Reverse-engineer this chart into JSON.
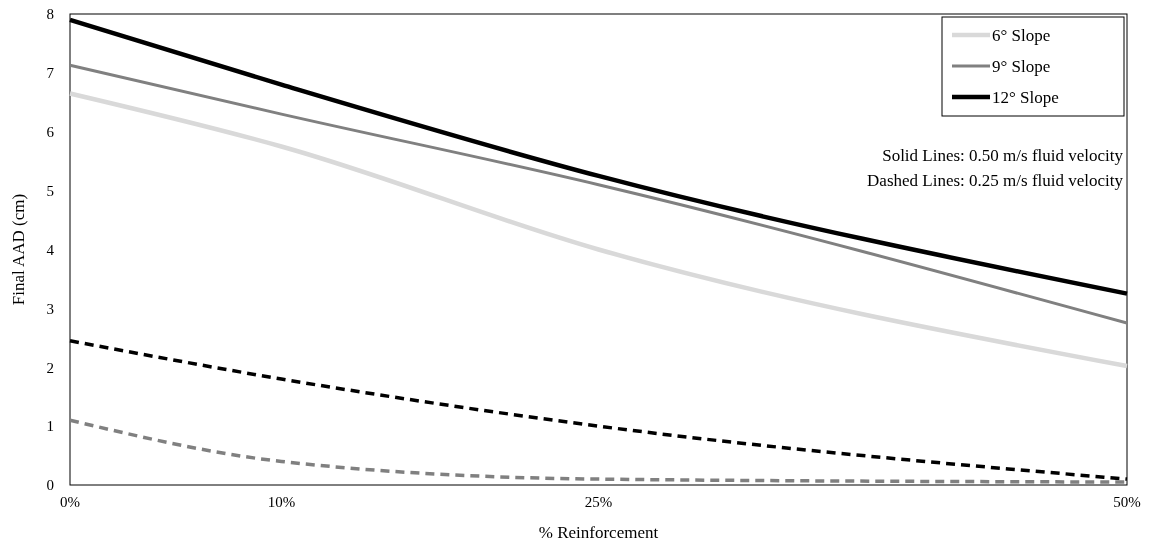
{
  "chart_data": {
    "type": "line",
    "xlabel": "% Reinforcement",
    "ylabel": "Final AAD (cm)",
    "x": [
      0,
      10,
      25,
      50
    ],
    "xlim": [
      0,
      50
    ],
    "xticks": [
      {
        "value": 0,
        "label": "0%"
      },
      {
        "value": 10,
        "label": "10%"
      },
      {
        "value": 25,
        "label": "25%"
      },
      {
        "value": 50,
        "label": "50%"
      }
    ],
    "ylim": [
      0,
      8
    ],
    "yticks": [
      0,
      1,
      2,
      3,
      4,
      5,
      6,
      7,
      8
    ],
    "grid": false,
    "legend": "top right",
    "marker": "none",
    "series": [
      {
        "name": "6° Slope",
        "color": "#d9d9d9",
        "values": [
          6.65,
          5.75,
          4.0,
          2.02
        ],
        "line_style": "solid"
      },
      {
        "name": "9° Slope",
        "color": "#808080",
        "values": [
          7.13,
          6.3,
          5.1,
          2.75
        ],
        "line_style": "solid"
      },
      {
        "name": "12° Slope",
        "color": "#000000",
        "values": [
          7.9,
          6.8,
          5.25,
          3.25
        ],
        "line_style": "solid"
      },
      {
        "color": "#000000",
        "values": [
          2.45,
          1.8,
          1.0,
          0.1
        ],
        "line_style": "dashed"
      },
      {
        "color": "#808080",
        "values": [
          1.1,
          0.4,
          0.1,
          0.05
        ],
        "line_style": "dashed"
      }
    ],
    "annotations": [
      "Solid Lines: 0.50 m/s fluid velocity",
      "Dashed Lines: 0.25 m/s fluid velocity"
    ]
  }
}
